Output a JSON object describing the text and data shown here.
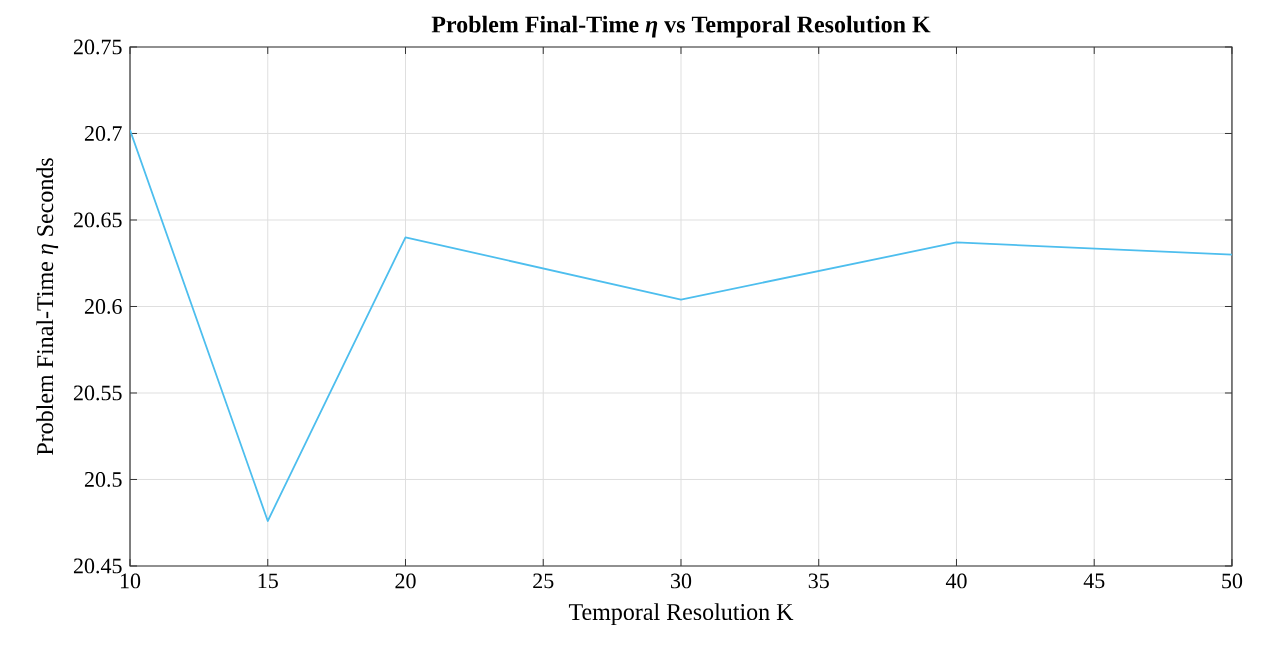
{
  "chart_data": {
    "type": "line",
    "title": "Problem Final-Time *η* vs Temporal Resolution K",
    "xlabel": "Temporal Resolution K",
    "ylabel": "Problem Final-Time *η* Seconds",
    "x": [
      10,
      15,
      20,
      30,
      40,
      50
    ],
    "series": [
      {
        "color": "#4dbeee",
        "values": [
          20.702,
          20.476,
          20.64,
          20.604,
          20.637,
          20.63
        ]
      }
    ],
    "xlim": [
      10,
      50
    ],
    "ylim": [
      20.45,
      20.75
    ],
    "xticks": [
      10,
      15,
      20,
      25,
      30,
      35,
      40,
      45,
      50
    ],
    "yticks": [
      20.45,
      20.5,
      20.55,
      20.6,
      20.65,
      20.7,
      20.75
    ],
    "grid": true,
    "marker": "none",
    "line_style": "solid"
  }
}
